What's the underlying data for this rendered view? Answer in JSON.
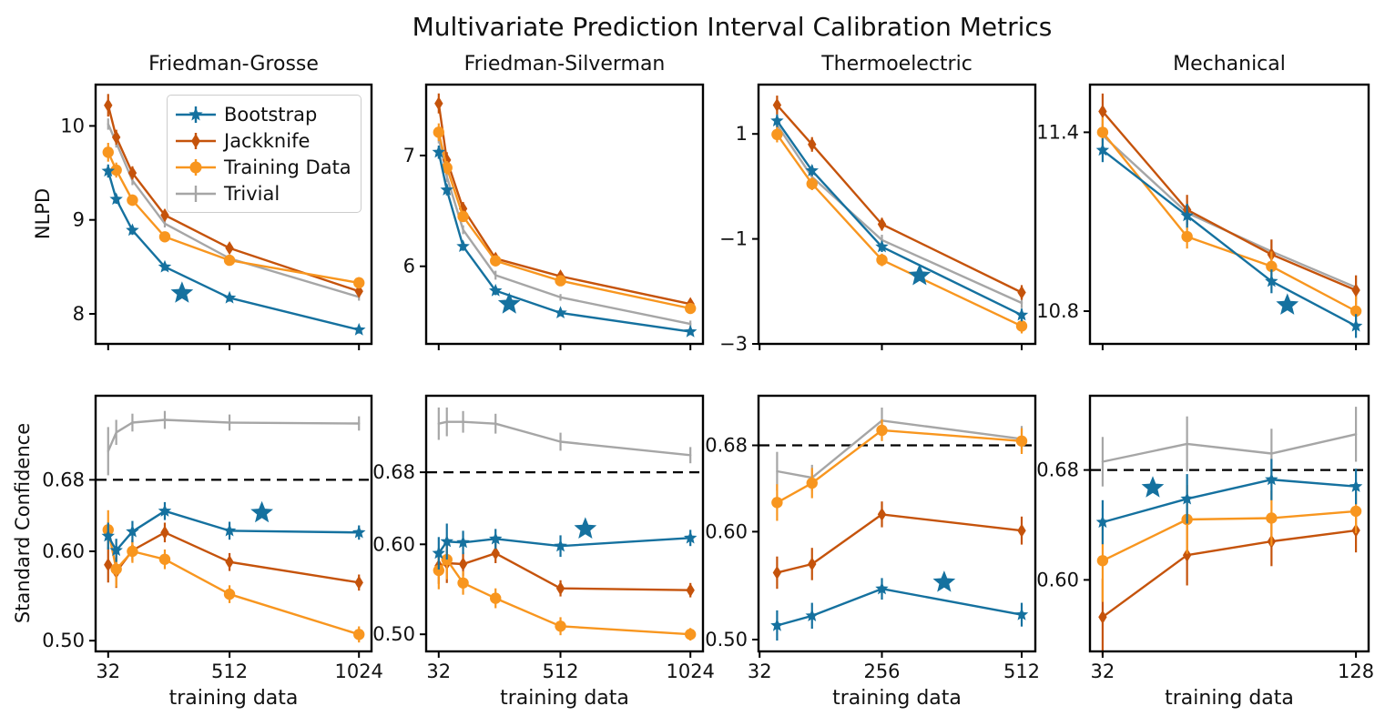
{
  "title": "Multivariate Prediction Interval Calibration Metrics",
  "columns": [
    "Friedman-Grosse",
    "Friedman-Silverman",
    "Thermoelectric",
    "Mechanical"
  ],
  "row_labels": [
    "NLPD",
    "Standard Confidence"
  ],
  "xlabel": "training data",
  "colors": {
    "bootstrap": "#15719f",
    "jackknife": "#c5530b",
    "training_data": "#f8961f",
    "trivial": "#a6a6a6",
    "target_line": "#000000",
    "axis": "#000000",
    "text": "#111111"
  },
  "legend": {
    "position": "inside top-left panel",
    "entries": [
      {
        "label": "Bootstrap",
        "color": "#15719f",
        "marker": "star"
      },
      {
        "label": "Jackknife",
        "color": "#c5530b",
        "marker": "thin-diamond"
      },
      {
        "label": "Training Data",
        "color": "#f8961f",
        "marker": "circle"
      },
      {
        "label": "Trivial",
        "color": "#a6a6a6",
        "marker": "none"
      }
    ]
  },
  "chart_data": [
    {
      "id": "nlpd-friedman-grosse",
      "type": "line",
      "row": 0,
      "col": 0,
      "col_title": "Friedman-Grosse",
      "ylabel": "NLPD",
      "x": [
        32,
        64,
        128,
        256,
        512,
        1024
      ],
      "xlim": [
        -17.6,
        1073.6
      ],
      "ylim": [
        7.68,
        10.44
      ],
      "xticks": [
        32,
        512,
        1024
      ],
      "xtick_labels": null,
      "yticks": [
        10,
        9,
        8
      ],
      "ytick_labels": [
        "10",
        "9",
        "8"
      ],
      "dashed_y": null,
      "series": [
        {
          "name": "Trivial",
          "values": [
            10.02,
            9.82,
            9.42,
            8.96,
            8.59,
            8.18
          ],
          "err": [
            0.06,
            0.05,
            0.05,
            0.04,
            0.04,
            0.04
          ]
        },
        {
          "name": "Jackknife",
          "values": [
            10.22,
            9.88,
            9.5,
            9.05,
            8.7,
            8.24
          ],
          "err": [
            0.12,
            0.08,
            0.07,
            0.06,
            0.05,
            0.05
          ]
        },
        {
          "name": "Training Data",
          "values": [
            9.72,
            9.53,
            9.21,
            8.82,
            8.57,
            8.33
          ],
          "err": [
            0.1,
            0.08,
            0.06,
            0.05,
            0.05,
            0.06
          ]
        },
        {
          "name": "Bootstrap",
          "values": [
            9.52,
            9.22,
            8.89,
            8.5,
            8.17,
            7.83
          ],
          "err": [
            0.07,
            0.05,
            0.05,
            0.04,
            0.04,
            0.04
          ]
        }
      ],
      "star": {
        "x": 324,
        "y": 8.22
      }
    },
    {
      "id": "nlpd-friedman-silverman",
      "type": "line",
      "row": 0,
      "col": 1,
      "col_title": "Friedman-Silverman",
      "ylabel": "NLPD",
      "x": [
        32,
        64,
        128,
        256,
        512,
        1024
      ],
      "xlim": [
        -17.6,
        1073.6
      ],
      "ylim": [
        5.3,
        7.64
      ],
      "xticks": [
        32,
        512,
        1024
      ],
      "xtick_labels": null,
      "yticks": [
        7,
        6
      ],
      "ytick_labels": [
        "7",
        "6"
      ],
      "dashed_y": null,
      "series": [
        {
          "name": "Trivial",
          "values": [
            7.16,
            6.81,
            6.33,
            5.92,
            5.72,
            5.48
          ],
          "err": [
            0.05,
            0.05,
            0.04,
            0.04,
            0.03,
            0.03
          ]
        },
        {
          "name": "Jackknife",
          "values": [
            7.47,
            6.96,
            6.52,
            6.07,
            5.91,
            5.66
          ],
          "err": [
            0.09,
            0.07,
            0.06,
            0.05,
            0.04,
            0.04
          ]
        },
        {
          "name": "Training Data",
          "values": [
            7.21,
            6.89,
            6.45,
            6.05,
            5.87,
            5.62
          ],
          "err": [
            0.08,
            0.06,
            0.05,
            0.05,
            0.04,
            0.04
          ]
        },
        {
          "name": "Bootstrap",
          "values": [
            7.03,
            6.69,
            6.18,
            5.78,
            5.58,
            5.41
          ],
          "err": [
            0.06,
            0.05,
            0.04,
            0.04,
            0.03,
            0.03
          ]
        }
      ],
      "star": {
        "x": 310,
        "y": 5.66
      }
    },
    {
      "id": "nlpd-thermoelectric",
      "type": "line",
      "row": 0,
      "col": 2,
      "col_title": "Thermoelectric",
      "ylabel": "NLPD",
      "x": [
        64,
        128,
        256,
        512
      ],
      "xlim": [
        30,
        537
      ],
      "ylim": [
        -3.0,
        1.94
      ],
      "xticks": [
        32,
        256,
        512
      ],
      "xtick_labels": null,
      "yticks": [
        1,
        -1,
        -3
      ],
      "ytick_labels": [
        "1",
        "−1",
        "−3"
      ],
      "dashed_y": null,
      "series": [
        {
          "name": "Trivial",
          "values": [
            1.17,
            0.18,
            -1.02,
            -2.22
          ],
          "err": [
            0.12,
            0.1,
            0.1,
            0.1
          ]
        },
        {
          "name": "Jackknife",
          "values": [
            1.55,
            0.8,
            -0.72,
            -2.02
          ],
          "err": [
            0.18,
            0.14,
            0.12,
            0.14
          ]
        },
        {
          "name": "Training Data",
          "values": [
            0.99,
            0.05,
            -1.4,
            -2.66
          ],
          "err": [
            0.15,
            0.12,
            0.12,
            0.14
          ]
        },
        {
          "name": "Bootstrap",
          "values": [
            1.25,
            0.3,
            -1.15,
            -2.45
          ],
          "err": [
            0.12,
            0.1,
            0.1,
            0.12
          ]
        }
      ],
      "star": {
        "x": 325,
        "y": -1.7
      }
    },
    {
      "id": "nlpd-mechanical",
      "type": "line",
      "row": 0,
      "col": 3,
      "col_title": "Mechanical",
      "ylabel": "NLPD",
      "x": [
        32,
        64,
        96,
        128
      ],
      "xlim": [
        27.2,
        132.8
      ],
      "ylim": [
        10.69,
        11.56
      ],
      "xticks": [
        32,
        128
      ],
      "xtick_labels": null,
      "yticks": [
        11.4,
        10.8
      ],
      "ytick_labels": [
        "11.4",
        "10.8"
      ],
      "dashed_y": null,
      "series": [
        {
          "name": "Trivial",
          "values": [
            11.39,
            11.13,
            11.0,
            10.88
          ],
          "err": [
            0.04,
            0.04,
            0.04,
            0.04
          ]
        },
        {
          "name": "Jackknife",
          "values": [
            11.47,
            11.14,
            10.99,
            10.87
          ],
          "err": [
            0.06,
            0.05,
            0.05,
            0.05
          ]
        },
        {
          "name": "Training Data",
          "values": [
            11.4,
            11.05,
            10.95,
            10.8
          ],
          "err": [
            0.05,
            0.04,
            0.05,
            0.05
          ]
        },
        {
          "name": "Bootstrap",
          "values": [
            11.34,
            11.12,
            10.9,
            10.75
          ],
          "err": [
            0.04,
            0.04,
            0.04,
            0.04
          ]
        }
      ],
      "star": {
        "x": 102,
        "y": 10.82
      }
    },
    {
      "id": "confidence-friedman-grosse",
      "type": "line",
      "row": 1,
      "col": 0,
      "col_title": "Friedman-Grosse",
      "ylabel": "Standard Confidence",
      "xlabel": "training data",
      "x": [
        32,
        64,
        128,
        256,
        512,
        1024
      ],
      "xlim": [
        -17.6,
        1073.6
      ],
      "ylim": [
        0.488,
        0.774
      ],
      "xticks": [
        32,
        512,
        1024
      ],
      "xtick_labels": [
        "32",
        "512",
        "1024"
      ],
      "yticks": [
        0.68,
        0.6,
        0.5
      ],
      "ytick_labels": [
        "0.68",
        "0.60",
        "0.50"
      ],
      "dashed_y": 0.68,
      "series": [
        {
          "name": "Trivial",
          "values": [
            0.712,
            0.733,
            0.744,
            0.747,
            0.744,
            0.743
          ],
          "err": [
            0.027,
            0.014,
            0.01,
            0.01,
            0.009,
            0.008
          ]
        },
        {
          "name": "Jackknife",
          "values": [
            0.585,
            0.577,
            0.601,
            0.621,
            0.588,
            0.565
          ],
          "err": [
            0.02,
            0.018,
            0.012,
            0.011,
            0.01,
            0.009
          ]
        },
        {
          "name": "Training Data",
          "values": [
            0.624,
            0.58,
            0.6,
            0.591,
            0.552,
            0.507
          ],
          "err": [
            0.022,
            0.02,
            0.013,
            0.011,
            0.01,
            0.009
          ]
        },
        {
          "name": "Bootstrap",
          "values": [
            0.617,
            0.601,
            0.622,
            0.645,
            0.623,
            0.621
          ],
          "err": [
            0.015,
            0.013,
            0.012,
            0.01,
            0.01,
            0.008
          ]
        }
      ],
      "star": {
        "x": 640,
        "y": 0.643
      }
    },
    {
      "id": "confidence-friedman-silverman",
      "type": "line",
      "row": 1,
      "col": 1,
      "col_title": "Friedman-Silverman",
      "ylabel": "Standard Confidence",
      "xlabel": "training data",
      "x": [
        32,
        64,
        128,
        256,
        512,
        1024
      ],
      "xlim": [
        -17.6,
        1073.6
      ],
      "ylim": [
        0.481,
        0.765
      ],
      "xticks": [
        32,
        512,
        1024
      ],
      "xtick_labels": [
        "32",
        "512",
        "1024"
      ],
      "yticks": [
        0.68,
        0.6,
        0.5
      ],
      "ytick_labels": [
        "0.68",
        "0.60",
        "0.50"
      ],
      "dashed_y": 0.68,
      "series": [
        {
          "name": "Trivial",
          "values": [
            0.734,
            0.736,
            0.736,
            0.734,
            0.714,
            0.699
          ],
          "err": [
            0.018,
            0.016,
            0.012,
            0.011,
            0.01,
            0.009
          ]
        },
        {
          "name": "Jackknife",
          "values": [
            0.576,
            0.579,
            0.578,
            0.59,
            0.551,
            0.549
          ],
          "err": [
            0.02,
            0.022,
            0.013,
            0.011,
            0.009,
            0.008
          ]
        },
        {
          "name": "Training Data",
          "values": [
            0.571,
            0.583,
            0.557,
            0.54,
            0.509,
            0.5
          ],
          "err": [
            0.021,
            0.022,
            0.013,
            0.011,
            0.01,
            0.007
          ]
        },
        {
          "name": "Bootstrap",
          "values": [
            0.59,
            0.603,
            0.602,
            0.606,
            0.598,
            0.607
          ],
          "err": [
            0.018,
            0.02,
            0.013,
            0.011,
            0.012,
            0.009
          ]
        }
      ],
      "star": {
        "x": 610,
        "y": 0.617
      }
    },
    {
      "id": "confidence-thermoelectric",
      "type": "line",
      "row": 1,
      "col": 2,
      "col_title": "Thermoelectric",
      "ylabel": "Standard Confidence",
      "xlabel": "training data",
      "x": [
        64,
        128,
        256,
        512
      ],
      "xlim": [
        30,
        537
      ],
      "ylim": [
        0.489,
        0.726
      ],
      "xticks": [
        32,
        256,
        512
      ],
      "xtick_labels": [
        "32",
        "256",
        "512"
      ],
      "yticks": [
        0.68,
        0.6,
        0.5
      ],
      "ytick_labels": [
        "0.68",
        "0.60",
        "0.50"
      ],
      "dashed_y": 0.68,
      "series": [
        {
          "name": "Trivial",
          "values": [
            0.656,
            0.65,
            0.703,
            0.686
          ],
          "err": [
            0.018,
            0.012,
            0.012,
            0.012
          ]
        },
        {
          "name": "Jackknife",
          "values": [
            0.562,
            0.57,
            0.616,
            0.601
          ],
          "err": [
            0.015,
            0.015,
            0.012,
            0.013
          ]
        },
        {
          "name": "Training Data",
          "values": [
            0.627,
            0.645,
            0.694,
            0.684
          ],
          "err": [
            0.017,
            0.014,
            0.01,
            0.012
          ]
        },
        {
          "name": "Bootstrap",
          "values": [
            0.513,
            0.522,
            0.547,
            0.523
          ],
          "err": [
            0.014,
            0.012,
            0.01,
            0.011
          ]
        }
      ],
      "star": {
        "x": 370,
        "y": 0.553
      }
    },
    {
      "id": "confidence-mechanical",
      "type": "line",
      "row": 1,
      "col": 3,
      "col_title": "Mechanical",
      "ylabel": "Standard Confidence",
      "xlabel": "training data",
      "x": [
        32,
        64,
        96,
        128
      ],
      "xlim": [
        27.2,
        132.8
      ],
      "ylim": [
        0.548,
        0.734
      ],
      "xticks": [
        32,
        128
      ],
      "xtick_labels": [
        "32",
        "128"
      ],
      "yticks": [
        0.68,
        0.6
      ],
      "ytick_labels": [
        "0.68",
        "0.60"
      ],
      "dashed_y": 0.68,
      "series": [
        {
          "name": "Trivial",
          "values": [
            0.686,
            0.699,
            0.692,
            0.706
          ],
          "err": [
            0.018,
            0.02,
            0.018,
            0.02
          ]
        },
        {
          "name": "Jackknife",
          "values": [
            0.573,
            0.618,
            0.628,
            0.636
          ],
          "err": [
            0.028,
            0.022,
            0.018,
            0.016
          ]
        },
        {
          "name": "Training Data",
          "values": [
            0.614,
            0.644,
            0.645,
            0.65
          ],
          "err": [
            0.03,
            0.025,
            0.02,
            0.016
          ]
        },
        {
          "name": "Bootstrap",
          "values": [
            0.642,
            0.659,
            0.673,
            0.668
          ],
          "err": [
            0.016,
            0.018,
            0.015,
            0.013
          ]
        }
      ],
      "star": {
        "x": 51,
        "y": 0.667
      }
    }
  ]
}
